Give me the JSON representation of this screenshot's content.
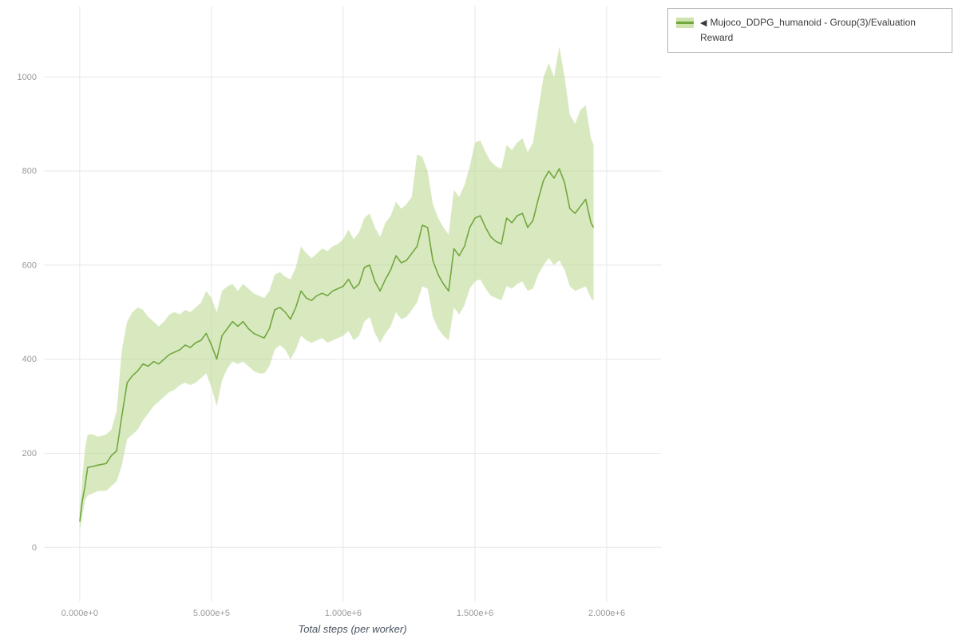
{
  "legend": {
    "marker": "◀"
  },
  "chart_data": {
    "type": "line",
    "title": "",
    "xlabel": "Total steps (per worker)",
    "ylabel": "",
    "grid": true,
    "legend_position": "top-right-outside",
    "x_tick_labels": [
      "0.000e+0",
      "5.000e+5",
      "1.000e+6",
      "1.500e+6",
      "2.000e+6"
    ],
    "x_tick_values": [
      0,
      500000,
      1000000,
      1500000,
      2000000
    ],
    "y_tick_values": [
      0,
      200,
      400,
      600,
      800,
      1000
    ],
    "xlim": [
      -136000,
      2206000
    ],
    "ylim": [
      -115,
      1150
    ],
    "colors": {
      "line": "#72a73e",
      "band": "#b8d78c",
      "grid": "#e7e7e7",
      "tick_label": "#999999",
      "axis_label": "#4a5560",
      "legend_border": "#b3b3b3",
      "legend_text": "#3a3a3a"
    },
    "series": [
      {
        "name": "Mujoco_DDPG_humanoid - Group(3)/Evaluation Reward",
        "x": [
          0,
          10000,
          20000,
          30000,
          50000,
          70000,
          100000,
          120000,
          140000,
          160000,
          180000,
          200000,
          220000,
          240000,
          260000,
          280000,
          300000,
          320000,
          340000,
          360000,
          380000,
          400000,
          420000,
          440000,
          460000,
          480000,
          500000,
          520000,
          540000,
          560000,
          580000,
          600000,
          620000,
          640000,
          660000,
          680000,
          700000,
          720000,
          740000,
          760000,
          780000,
          800000,
          820000,
          840000,
          860000,
          880000,
          900000,
          920000,
          940000,
          960000,
          980000,
          1000000,
          1020000,
          1040000,
          1060000,
          1080000,
          1100000,
          1120000,
          1140000,
          1160000,
          1180000,
          1200000,
          1220000,
          1240000,
          1260000,
          1280000,
          1300000,
          1320000,
          1340000,
          1360000,
          1380000,
          1400000,
          1420000,
          1440000,
          1460000,
          1480000,
          1500000,
          1520000,
          1540000,
          1560000,
          1580000,
          1600000,
          1620000,
          1640000,
          1660000,
          1680000,
          1700000,
          1720000,
          1740000,
          1760000,
          1780000,
          1800000,
          1820000,
          1840000,
          1860000,
          1880000,
          1900000,
          1920000,
          1940000,
          1950000
        ],
        "mean": [
          55,
          100,
          130,
          170,
          172,
          175,
          178,
          195,
          205,
          280,
          350,
          365,
          375,
          390,
          385,
          395,
          390,
          400,
          410,
          415,
          420,
          430,
          425,
          435,
          440,
          455,
          430,
          400,
          450,
          465,
          480,
          470,
          480,
          465,
          455,
          450,
          445,
          465,
          505,
          510,
          500,
          485,
          510,
          545,
          530,
          525,
          535,
          540,
          535,
          545,
          550,
          555,
          570,
          550,
          560,
          595,
          600,
          565,
          545,
          570,
          590,
          620,
          605,
          610,
          625,
          640,
          685,
          680,
          610,
          580,
          560,
          545,
          635,
          620,
          640,
          680,
          700,
          705,
          680,
          660,
          650,
          645,
          700,
          690,
          705,
          710,
          680,
          695,
          740,
          780,
          800,
          785,
          805,
          775,
          720,
          710,
          725,
          740,
          690,
          680
        ],
        "upper": [
          75,
          150,
          210,
          240,
          240,
          235,
          240,
          250,
          290,
          420,
          480,
          500,
          510,
          505,
          490,
          480,
          470,
          480,
          495,
          500,
          495,
          505,
          500,
          510,
          520,
          545,
          530,
          500,
          545,
          555,
          560,
          545,
          560,
          550,
          540,
          535,
          530,
          545,
          580,
          585,
          575,
          570,
          595,
          640,
          625,
          615,
          625,
          635,
          630,
          640,
          645,
          655,
          675,
          655,
          670,
          700,
          710,
          680,
          660,
          690,
          705,
          735,
          720,
          730,
          745,
          835,
          830,
          800,
          730,
          700,
          680,
          665,
          760,
          745,
          770,
          810,
          860,
          865,
          840,
          820,
          810,
          805,
          855,
          845,
          860,
          870,
          840,
          860,
          930,
          1000,
          1030,
          1000,
          1065,
          1000,
          920,
          900,
          930,
          940,
          870,
          855
        ],
        "lower": [
          35,
          70,
          100,
          110,
          115,
          120,
          120,
          130,
          140,
          175,
          230,
          240,
          250,
          270,
          285,
          300,
          310,
          320,
          330,
          335,
          345,
          350,
          345,
          350,
          360,
          370,
          340,
          300,
          355,
          380,
          395,
          390,
          395,
          385,
          375,
          370,
          370,
          385,
          420,
          430,
          420,
          400,
          420,
          450,
          440,
          435,
          440,
          445,
          435,
          440,
          445,
          450,
          460,
          440,
          450,
          480,
          490,
          455,
          435,
          455,
          470,
          500,
          485,
          490,
          505,
          520,
          555,
          550,
          490,
          465,
          450,
          440,
          510,
          495,
          515,
          550,
          565,
          570,
          550,
          535,
          530,
          525,
          555,
          550,
          560,
          565,
          545,
          550,
          580,
          600,
          615,
          600,
          610,
          590,
          555,
          545,
          550,
          555,
          530,
          525
        ]
      }
    ]
  }
}
